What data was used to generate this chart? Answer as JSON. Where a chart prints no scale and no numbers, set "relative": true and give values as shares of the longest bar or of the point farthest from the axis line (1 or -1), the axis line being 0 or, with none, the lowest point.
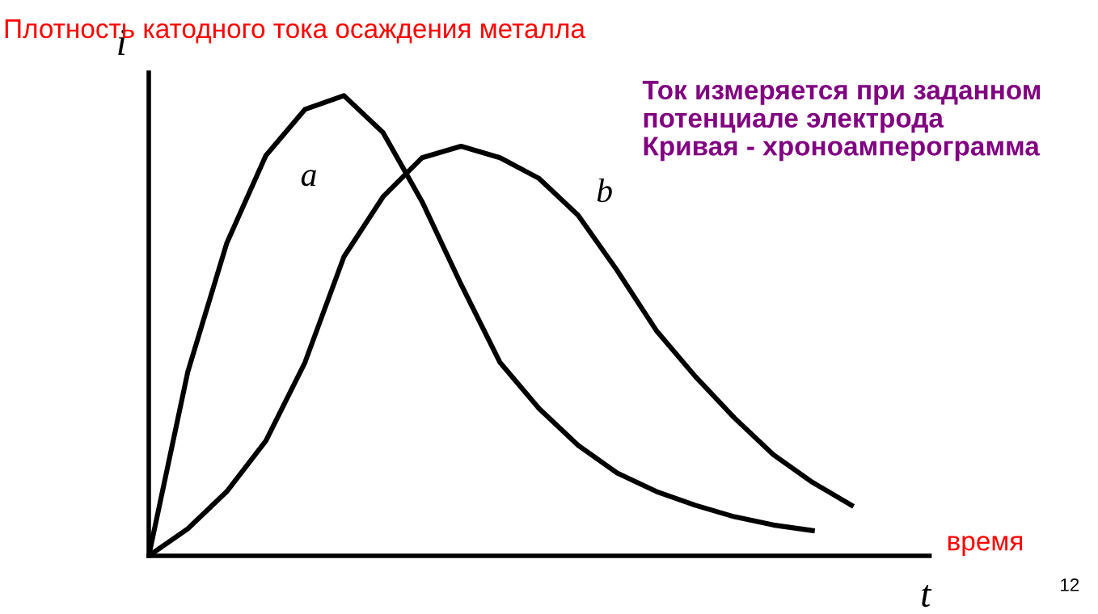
{
  "chart_data": {
    "type": "line",
    "relative": true,
    "title": "Плотность катодного тока осаждения металла",
    "xlabel": "t",
    "ylabel": "i",
    "marker": "none",
    "line_style": "solid",
    "categories": [
      null,
      null,
      null,
      null,
      null,
      null,
      null,
      null,
      null,
      null,
      null,
      null,
      null,
      null,
      null,
      null,
      null,
      null,
      null,
      null,
      null
    ],
    "annotations": [
      "время",
      "Ток измеряется при заданном\nпотенциале электрода\nКривая - хроноамперограмма",
      "12"
    ],
    "series": [
      {
        "name": "a",
        "color": "#000000",
        "values": [
          0,
          0.4,
          0.68,
          0.87,
          0.97,
          1.0,
          0.92,
          0.77,
          0.59,
          0.42,
          0.32,
          0.24,
          0.18,
          0.14,
          0.11,
          0.085,
          0.067,
          0.055,
          null,
          null,
          null
        ]
      },
      {
        "name": "b",
        "color": "#000000",
        "values": [
          0,
          0.059,
          0.14,
          0.25,
          0.42,
          0.65,
          0.78,
          0.865,
          0.89,
          0.865,
          0.82,
          0.74,
          0.62,
          0.49,
          0.39,
          0.3,
          0.22,
          0.16,
          0.11,
          null,
          null
        ]
      }
    ]
  }
}
